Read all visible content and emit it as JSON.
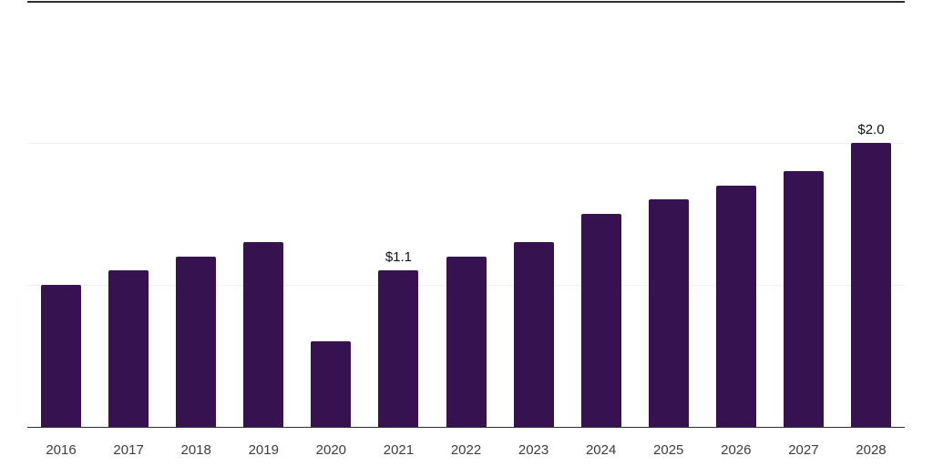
{
  "chart_data": {
    "type": "bar",
    "title": "",
    "xlabel": "",
    "ylabel": "",
    "categories": [
      "2016",
      "2017",
      "2018",
      "2019",
      "2020",
      "2021",
      "2022",
      "2023",
      "2024",
      "2025",
      "2026",
      "2027",
      "2028"
    ],
    "values": [
      1.0,
      1.1,
      1.2,
      1.3,
      0.6,
      1.1,
      1.2,
      1.3,
      1.5,
      1.6,
      1.7,
      1.8,
      2.0
    ],
    "data_labels": [
      {
        "index": 5,
        "text": "$1.1"
      },
      {
        "index": 12,
        "text": "$2.0"
      }
    ],
    "ylim": [
      0,
      3
    ],
    "gridline_values": [
      1,
      2
    ],
    "grid": "horizontal-light",
    "legend": "none"
  },
  "colors": {
    "bar": "#371250",
    "axis_line": "#2e2e2e",
    "gridline": "#f0f0f0",
    "tick_label": "#3d3d3d",
    "data_label": "#111111",
    "background": "#ffffff"
  }
}
